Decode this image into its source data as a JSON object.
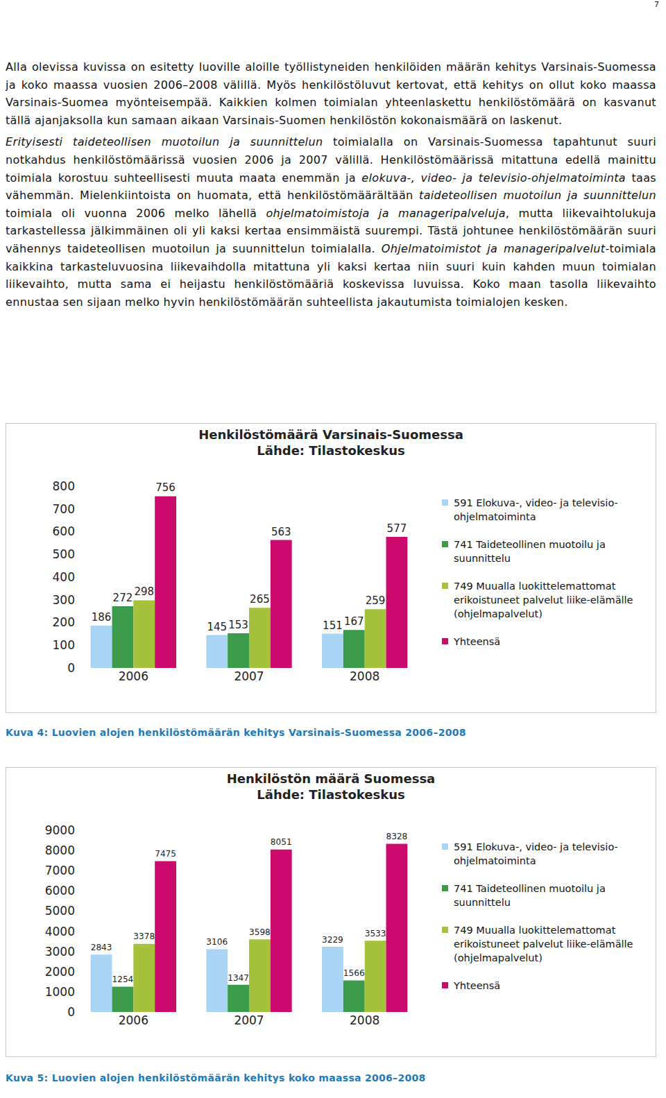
{
  "page_number": "7",
  "paragraphs": [
    [
      {
        "text": "Alla olevissa kuvissa on esitetty luoville aloille työllistyneiden henkilöiden määrän kehitys Varsinais-Suomessa ja koko maassa vuosien 2006–2008 välillä. Myös henkilöstöluvut kertovat, että kehitys on ollut koko maassa Varsinais-Suomea myönteisempää. Kaikkien kolmen toimialan yhteenlaskettu henkilöstömäärä on kasvanut tällä ajanjaksolla kun samaan aikaan Varsinais-Suomen henkilöstön kokonaismäärä on laskenut.",
        "italic": false
      }
    ],
    [
      {
        "text": "Erityisesti taideteollisen muotoilun ja suunnittelun",
        "italic": true
      },
      {
        "text": " toimialalla on Varsinais-Suomessa tapahtunut suuri notkahdus henkilöstömäärissä vuosien 2006 ja 2007 välillä. Henkilöstömäärissä mitattuna edellä mainittu toimiala korostuu suhteellisesti muuta maata enemmän ja ",
        "italic": false
      },
      {
        "text": "elokuva-, video- ja televisio-ohjelmatoiminta",
        "italic": true
      },
      {
        "text": " taas vähemmän. Mielenkiintoista on huomata, että henkilöstömäärältään ",
        "italic": false
      },
      {
        "text": "taideteollisen muotoilun ja suunnittelun",
        "italic": true
      },
      {
        "text": " toimiala oli vuonna 2006 melko lähellä ",
        "italic": false
      },
      {
        "text": "ohjelmatoimistoja ja manageripalveluja",
        "italic": true
      },
      {
        "text": ", mutta liikevaihtolukuja tarkastellessa jälkimmäinen oli yli kaksi kertaa ensimmäistä suurempi. Tästä johtunee henkilöstömäärän suuri vähennys taideteollisen muotoilun ja suunnittelun toimialalla. ",
        "italic": false
      },
      {
        "text": "Ohjelmatoimistot ja manageripalvelut",
        "italic": true
      },
      {
        "text": "-toimiala kaikkina tarkasteluvuosina liikevaihdolla mitattuna yli kaksi kertaa niin suuri kuin kahden muun toimialan liikevaihto, mutta sama ei heijastu henkilöstömääriä koskevissa luvuissa. Koko maan tasolla liikevaihto ennustaa sen sijaan melko hyvin henkilöstömäärän suhteellista jakautumista toimialojen kesken.",
        "italic": false
      }
    ]
  ],
  "chart_data": [
    {
      "type": "bar",
      "title": "Henkilöstömäärä Varsinais-Suomessa",
      "subtitle": "Lähde: Tilastokeskus",
      "categories": [
        "2006",
        "2007",
        "2008"
      ],
      "series": [
        {
          "name": "591 Elokuva-, video- ja televisio-ohjelmatoiminta",
          "color": "#a9d4f3",
          "values": [
            186,
            145,
            151
          ]
        },
        {
          "name": "741 Taideteollinen muotoilu ja suunnittelu",
          "color": "#3b9a4c",
          "values": [
            272,
            153,
            167
          ]
        },
        {
          "name": "749 Muualla luokittelemattomat erikoistuneet palvelut liike-elämälle (ohjelmapalvelut)",
          "color": "#a6c23c",
          "values": [
            298,
            265,
            259
          ]
        },
        {
          "name": "Yhteensä",
          "color": "#cc0a6e",
          "values": [
            756,
            563,
            577
          ]
        }
      ],
      "ylim": [
        0,
        800
      ],
      "yticks": [
        0,
        100,
        200,
        300,
        400,
        500,
        600,
        700,
        800
      ],
      "grid": false,
      "legend": "right",
      "data_labels": true
    },
    {
      "type": "bar",
      "title": "Henkilöstön määrä Suomessa",
      "subtitle": "Lähde: Tilastokeskus",
      "categories": [
        "2006",
        "2007",
        "2008"
      ],
      "series": [
        {
          "name": "591 Elokuva-, video- ja televisio-ohjelmatoiminta",
          "color": "#a9d4f3",
          "values": [
            2843,
            3106,
            3229
          ]
        },
        {
          "name": "741 Taideteollinen muotoilu ja suunnittelu",
          "color": "#3b9a4c",
          "values": [
            1254,
            1347,
            1566
          ]
        },
        {
          "name": "749 Muualla luokittelemattomat erikoistuneet palvelut liike-elämälle (ohjelmapalvelut)",
          "color": "#a6c23c",
          "values": [
            3378,
            3598,
            3533
          ]
        },
        {
          "name": "Yhteensä",
          "color": "#cc0a6e",
          "values": [
            7475,
            8051,
            8328
          ]
        }
      ],
      "ylim": [
        0,
        9000
      ],
      "yticks": [
        0,
        1000,
        2000,
        3000,
        4000,
        5000,
        6000,
        7000,
        8000,
        9000
      ],
      "grid": false,
      "legend": "right",
      "data_labels": true
    }
  ],
  "captions": [
    "Kuva 4: Luovien alojen henkilöstömäärän kehitys Varsinais-Suomessa 2006–2008",
    "Kuva 5: Luovien alojen henkilöstömäärän kehitys koko maassa 2006–2008"
  ]
}
